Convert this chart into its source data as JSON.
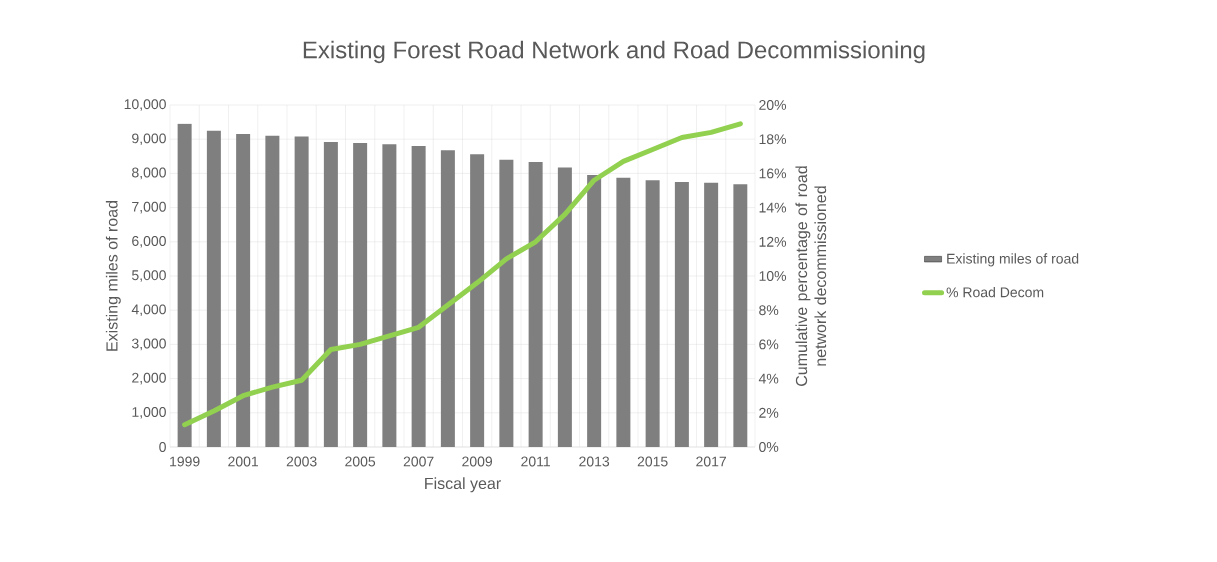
{
  "chart_data": {
    "type": "bar",
    "title": "Existing Forest Road Network and Road Decommissioning",
    "xlabel": "Fiscal year",
    "ylabel": "Existing miles of road",
    "y2label": "Cumulative percentage of road network decommissioned",
    "categories": [
      "1999",
      null,
      "2001",
      null,
      "2003",
      null,
      "2005",
      null,
      "2007",
      null,
      "2009",
      null,
      "2011",
      null,
      "2013",
      null,
      "2015",
      null,
      "2017",
      null
    ],
    "series": [
      {
        "name": "Existing miles of road",
        "color": "#7f7f7f",
        "values": [
          9450,
          9250,
          9150,
          9100,
          9080,
          8920,
          8890,
          8850,
          8800,
          8680,
          8560,
          8400,
          8330,
          8170,
          7950,
          7870,
          7800,
          7750,
          7730,
          7680
        ]
      },
      {
        "name": "% Road Decom",
        "type": "line",
        "axis": "y2",
        "color": "#92d050",
        "values": [
          1.3,
          2.1,
          3.0,
          3.5,
          3.9,
          5.7,
          6.0,
          6.5,
          7.0,
          8.3,
          9.6,
          11.0,
          12.0,
          13.6,
          15.6,
          16.7,
          17.4,
          18.1,
          18.4,
          18.9
        ]
      }
    ],
    "ylim": [
      0,
      10000
    ],
    "yticks": [
      0,
      {
        "value": 1000,
        "label": "1,000"
      },
      {
        "value": 2000,
        "label": "2,000"
      },
      {
        "value": 3000,
        "label": "3,000"
      },
      {
        "value": 4000,
        "label": "4,000"
      },
      {
        "value": 5000,
        "label": "5,000"
      },
      {
        "value": 6000,
        "label": "6,000"
      },
      {
        "value": 7000,
        "label": "7,000"
      },
      {
        "value": 8000,
        "label": "8,000"
      },
      {
        "value": 9000,
        "label": "9,000"
      },
      {
        "value": 10000,
        "label": "10,000"
      }
    ],
    "y2lim": [
      0,
      20
    ],
    "y2ticks": [
      {
        "value": 0,
        "label": "0%"
      },
      {
        "value": 2,
        "label": "2%"
      },
      {
        "value": 4,
        "label": "4%"
      },
      {
        "value": 6,
        "label": "6%"
      },
      {
        "value": 8,
        "label": "8%"
      },
      {
        "value": 10,
        "label": "10%"
      },
      {
        "value": 12,
        "label": "12%"
      },
      {
        "value": 14,
        "label": "14%"
      },
      {
        "value": 16,
        "label": "16%"
      },
      {
        "value": 18,
        "label": "18%"
      },
      {
        "value": 20,
        "label": "20%"
      }
    ],
    "grid": true,
    "legend": "right"
  }
}
